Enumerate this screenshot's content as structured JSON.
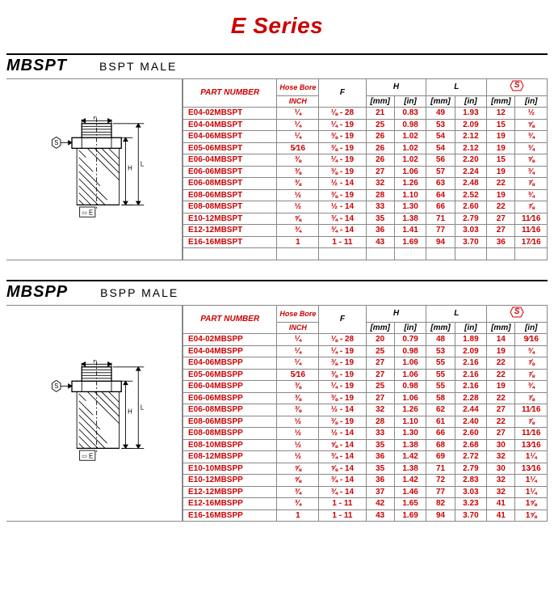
{
  "series_title": "E Series",
  "title_color": "#cc0000",
  "row_text_color": "#cc0000",
  "border_color": "#888888",
  "sections": [
    {
      "code": "MBSPT",
      "desc": "BSPT MALE",
      "headers": {
        "part": "PART NUMBER",
        "hose": "Hose Bore",
        "inch": "INCH",
        "f": "F",
        "h": "H",
        "l": "L",
        "s": "S",
        "mm": "[mm]",
        "in": "[in]"
      },
      "rows": [
        {
          "pn": "E04-02MBSPT",
          "hose": "¼",
          "f": "⅛ - 28",
          "hmm": "21",
          "hin": "0.83",
          "lmm": "49",
          "lin": "1.93",
          "smm": "12",
          "sin": "½"
        },
        {
          "pn": "E04-04MBSPT",
          "hose": "¼",
          "f": "¼ - 19",
          "hmm": "25",
          "hin": "0.98",
          "lmm": "53",
          "lin": "2.09",
          "smm": "15",
          "sin": "⅝"
        },
        {
          "pn": "E04-06MBSPT",
          "hose": "¼",
          "f": "⅜ - 19",
          "hmm": "26",
          "hin": "1.02",
          "lmm": "54",
          "lin": "2.12",
          "smm": "19",
          "sin": "¾"
        },
        {
          "pn": "E05-06MBSPT",
          "hose": "5⁄16",
          "f": "⅜ - 19",
          "hmm": "26",
          "hin": "1.02",
          "lmm": "54",
          "lin": "2.12",
          "smm": "19",
          "sin": "¾"
        },
        {
          "pn": "E06-04MBSPT",
          "hose": "⅜",
          "f": "¼ - 19",
          "hmm": "26",
          "hin": "1.02",
          "lmm": "56",
          "lin": "2.20",
          "smm": "15",
          "sin": "⅝"
        },
        {
          "pn": "E06-06MBSPT",
          "hose": "⅜",
          "f": "⅜ - 19",
          "hmm": "27",
          "hin": "1.06",
          "lmm": "57",
          "lin": "2.24",
          "smm": "19",
          "sin": "¾"
        },
        {
          "pn": "E06-08MBSPT",
          "hose": "⅜",
          "f": "½ - 14",
          "hmm": "32",
          "hin": "1.26",
          "lmm": "63",
          "lin": "2.48",
          "smm": "22",
          "sin": "⅞"
        },
        {
          "pn": "E08-06MBSPT",
          "hose": "½",
          "f": "⅜ - 19",
          "hmm": "28",
          "hin": "1.10",
          "lmm": "64",
          "lin": "2.52",
          "smm": "19",
          "sin": "¾"
        },
        {
          "pn": "E08-08MBSPT",
          "hose": "½",
          "f": "½ - 14",
          "hmm": "33",
          "hin": "1.30",
          "lmm": "66",
          "lin": "2.60",
          "smm": "22",
          "sin": "⅞"
        },
        {
          "pn": "E10-12MBSPT",
          "hose": "⅝",
          "f": "¾ - 14",
          "hmm": "35",
          "hin": "1.38",
          "lmm": "71",
          "lin": "2.79",
          "smm": "27",
          "sin": "11⁄16"
        },
        {
          "pn": "E12-12MBSPT",
          "hose": "¾",
          "f": "¾ - 14",
          "hmm": "36",
          "hin": "1.41",
          "lmm": "77",
          "lin": "3.03",
          "smm": "27",
          "sin": "11⁄16"
        },
        {
          "pn": "E16-16MBSPT",
          "hose": "1",
          "f": "1 - 11",
          "hmm": "43",
          "hin": "1.69",
          "lmm": "94",
          "lin": "3.70",
          "smm": "36",
          "sin": "17⁄16"
        }
      ],
      "blank_rows": 1
    },
    {
      "code": "MBSPP",
      "desc": "BSPP MALE",
      "headers": {
        "part": "PART NUMBER",
        "hose": "Hose Bore",
        "inch": "INCH",
        "f": "F",
        "h": "H",
        "l": "L",
        "s": "S",
        "mm": "[mm]",
        "in": "[in]"
      },
      "rows": [
        {
          "pn": "E04-02MBSPP",
          "hose": "¼",
          "f": "⅛ - 28",
          "hmm": "20",
          "hin": "0.79",
          "lmm": "48",
          "lin": "1.89",
          "smm": "14",
          "sin": "9⁄16"
        },
        {
          "pn": "E04-04MBSPP",
          "hose": "¼",
          "f": "¼ - 19",
          "hmm": "25",
          "hin": "0.98",
          "lmm": "53",
          "lin": "2.09",
          "smm": "19",
          "sin": "¾"
        },
        {
          "pn": "E04-06MBSPP",
          "hose": "¼",
          "f": "⅜ - 19",
          "hmm": "27",
          "hin": "1.06",
          "lmm": "55",
          "lin": "2.16",
          "smm": "22",
          "sin": "⅞"
        },
        {
          "pn": "E05-06MBSPP",
          "hose": "5⁄16",
          "f": "⅜ - 19",
          "hmm": "27",
          "hin": "1.06",
          "lmm": "55",
          "lin": "2.16",
          "smm": "22",
          "sin": "⅞"
        },
        {
          "pn": "E06-04MBSPP",
          "hose": "⅜",
          "f": "¼ - 19",
          "hmm": "25",
          "hin": "0.98",
          "lmm": "55",
          "lin": "2.16",
          "smm": "19",
          "sin": "¾"
        },
        {
          "pn": "E06-06MBSPP",
          "hose": "⅜",
          "f": "⅜ - 19",
          "hmm": "27",
          "hin": "1.06",
          "lmm": "58",
          "lin": "2.28",
          "smm": "22",
          "sin": "⅞"
        },
        {
          "pn": "E06-08MBSPP",
          "hose": "⅜",
          "f": "½ - 14",
          "hmm": "32",
          "hin": "1.26",
          "lmm": "62",
          "lin": "2.44",
          "smm": "27",
          "sin": "11⁄16"
        },
        {
          "pn": "E08-06MBSPP",
          "hose": "½",
          "f": "⅜ - 19",
          "hmm": "28",
          "hin": "1.10",
          "lmm": "61",
          "lin": "2.40",
          "smm": "22",
          "sin": "⅞"
        },
        {
          "pn": "E08-08MBSPP",
          "hose": "½",
          "f": "½ - 14",
          "hmm": "33",
          "hin": "1.30",
          "lmm": "66",
          "lin": "2.60",
          "smm": "27",
          "sin": "11⁄16"
        },
        {
          "pn": "E08-10MBSPP",
          "hose": "½",
          "f": "⅝ - 14",
          "hmm": "35",
          "hin": "1.38",
          "lmm": "68",
          "lin": "2.68",
          "smm": "30",
          "sin": "13⁄16"
        },
        {
          "pn": "E08-12MBSPP",
          "hose": "½",
          "f": "¾ - 14",
          "hmm": "36",
          "hin": "1.42",
          "lmm": "69",
          "lin": "2.72",
          "smm": "32",
          "sin": "1¼"
        },
        {
          "pn": "E10-10MBSPP",
          "hose": "⅝",
          "f": "⅝ - 14",
          "hmm": "35",
          "hin": "1.38",
          "lmm": "71",
          "lin": "2.79",
          "smm": "30",
          "sin": "13⁄16"
        },
        {
          "pn": "E10-12MBSPP",
          "hose": "⅝",
          "f": "¾ - 14",
          "hmm": "36",
          "hin": "1.42",
          "lmm": "72",
          "lin": "2.83",
          "smm": "32",
          "sin": "1¼"
        },
        {
          "pn": "E12-12MBSPP",
          "hose": "¾",
          "f": "¾ - 14",
          "hmm": "37",
          "hin": "1.46",
          "lmm": "77",
          "lin": "3.03",
          "smm": "32",
          "sin": "1¼"
        },
        {
          "pn": "E12-16MBSPP",
          "hose": "¾",
          "f": "1 - 11",
          "hmm": "42",
          "hin": "1.65",
          "lmm": "82",
          "lin": "3.23",
          "smm": "41",
          "sin": "1⅝"
        },
        {
          "pn": "E16-16MBSPP",
          "hose": "1",
          "f": "1 - 11",
          "hmm": "43",
          "hin": "1.69",
          "lmm": "94",
          "lin": "3.70",
          "smm": "41",
          "sin": "1⅝"
        }
      ],
      "blank_rows": 0
    }
  ],
  "diagram_labels": {
    "F": "F",
    "S": "S",
    "H": "H",
    "L": "L",
    "E": "E"
  }
}
